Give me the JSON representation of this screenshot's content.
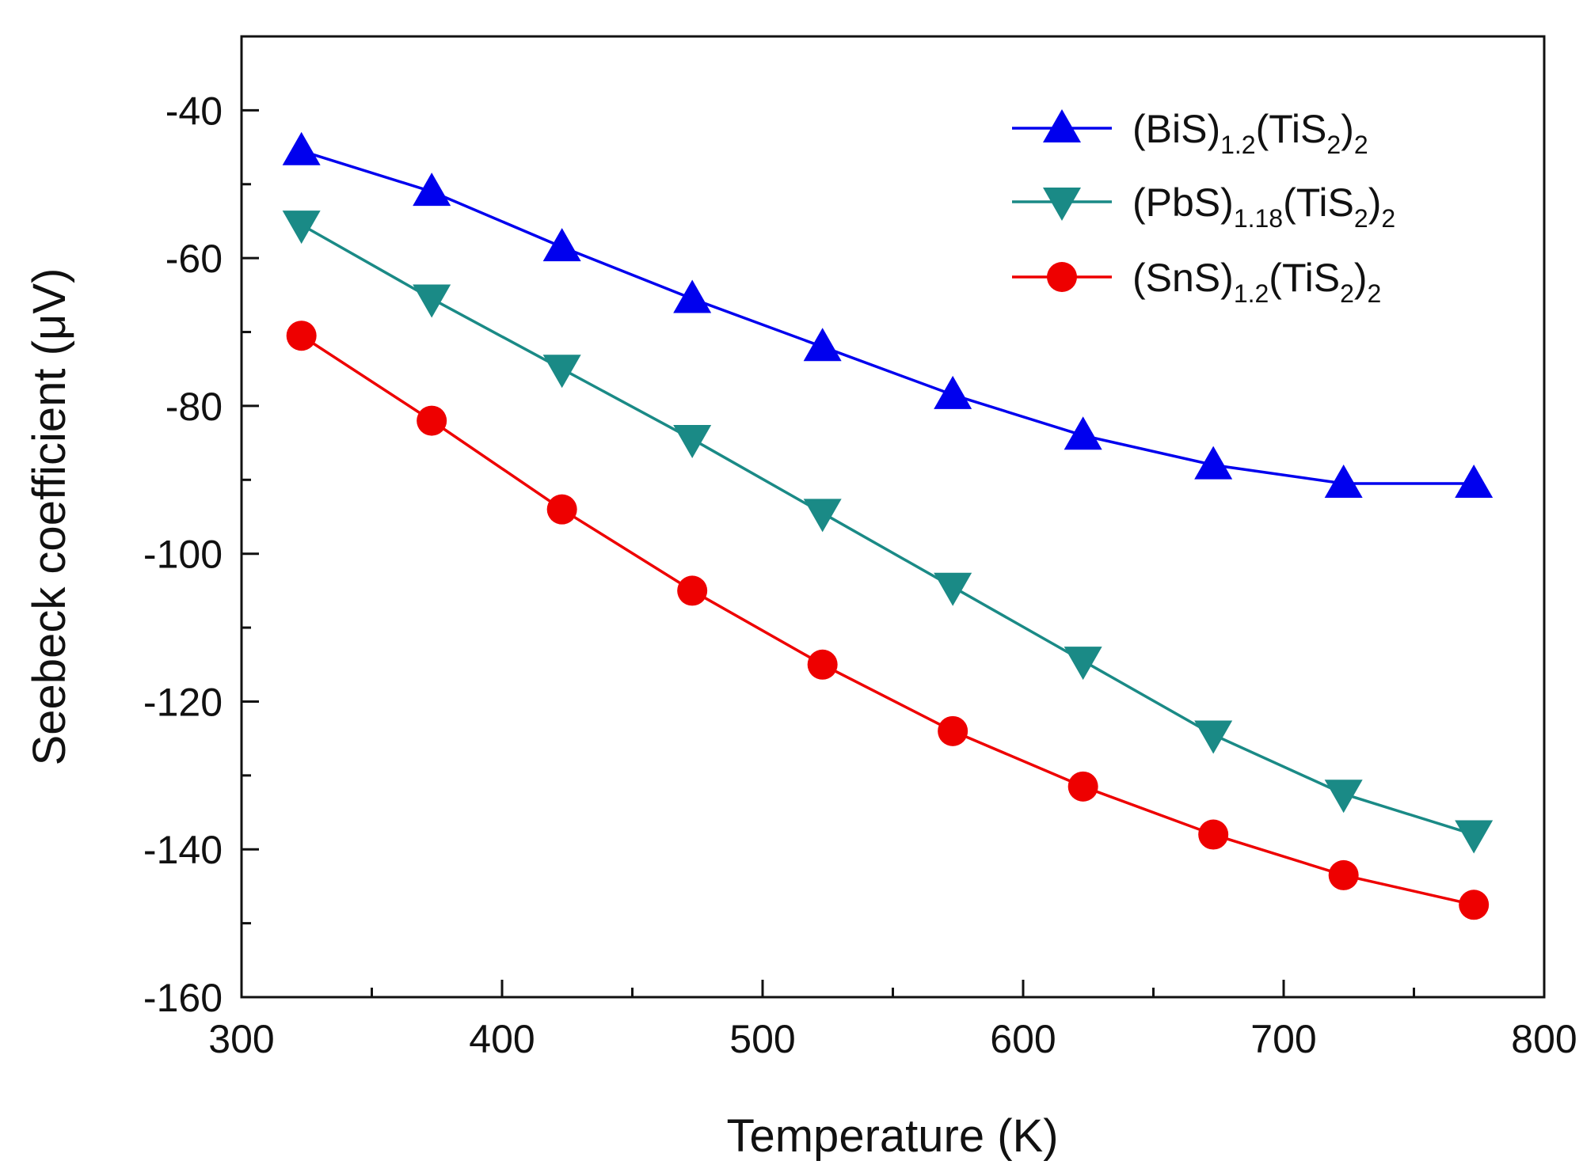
{
  "chart_data": {
    "type": "line",
    "xlabel": "Temperature (K)",
    "ylabel": "Seebeck coefficient (μV)",
    "xlim": [
      300,
      800
    ],
    "ylim": [
      -160,
      -30
    ],
    "xticks": [
      300,
      400,
      500,
      600,
      700,
      800
    ],
    "yticks": [
      -160,
      -140,
      -120,
      -100,
      -80,
      -60,
      -40
    ],
    "x": [
      323,
      373,
      423,
      473,
      523,
      573,
      623,
      673,
      723,
      773
    ],
    "legend_position": "top-right",
    "grid": false,
    "series": [
      {
        "name": "(BiS)1.2(TiS2)2",
        "legend_parts": [
          [
            "(BiS)",
            "n"
          ],
          [
            "1.2",
            "sub"
          ],
          [
            "(TiS",
            "n"
          ],
          [
            "2",
            "sub"
          ],
          [
            ")",
            "n"
          ],
          [
            "2",
            "sub"
          ]
        ],
        "color": "#0000ee",
        "marker": "triangle-up",
        "values": [
          -45.5,
          -51,
          -58.5,
          -65.5,
          -72,
          -78.5,
          -84,
          -88,
          -90.5,
          -90.5
        ]
      },
      {
        "name": "(PbS)1.18(TiS2)2",
        "legend_parts": [
          [
            "(PbS)",
            "n"
          ],
          [
            "1.18",
            "sub"
          ],
          [
            "(TiS",
            "n"
          ],
          [
            "2",
            "sub"
          ],
          [
            ")",
            "n"
          ],
          [
            "2",
            "sub"
          ]
        ],
        "color": "#1a8a86",
        "marker": "triangle-down",
        "values": [
          -55.5,
          -65.5,
          -75,
          -84.5,
          -94.5,
          -104.5,
          -114.5,
          -124.5,
          -132.5,
          -138
        ]
      },
      {
        "name": "(SnS)1.2(TiS2)2",
        "legend_parts": [
          [
            "(SnS)",
            "n"
          ],
          [
            "1.2",
            "sub"
          ],
          [
            "(TiS",
            "n"
          ],
          [
            "2",
            "sub"
          ],
          [
            ")",
            "n"
          ],
          [
            "2",
            "sub"
          ]
        ],
        "color": "#ee0000",
        "marker": "circle",
        "values": [
          -70.5,
          -82,
          -94,
          -105,
          -115,
          -124,
          -131.5,
          -138,
          -143.5,
          -147.5
        ]
      }
    ]
  }
}
